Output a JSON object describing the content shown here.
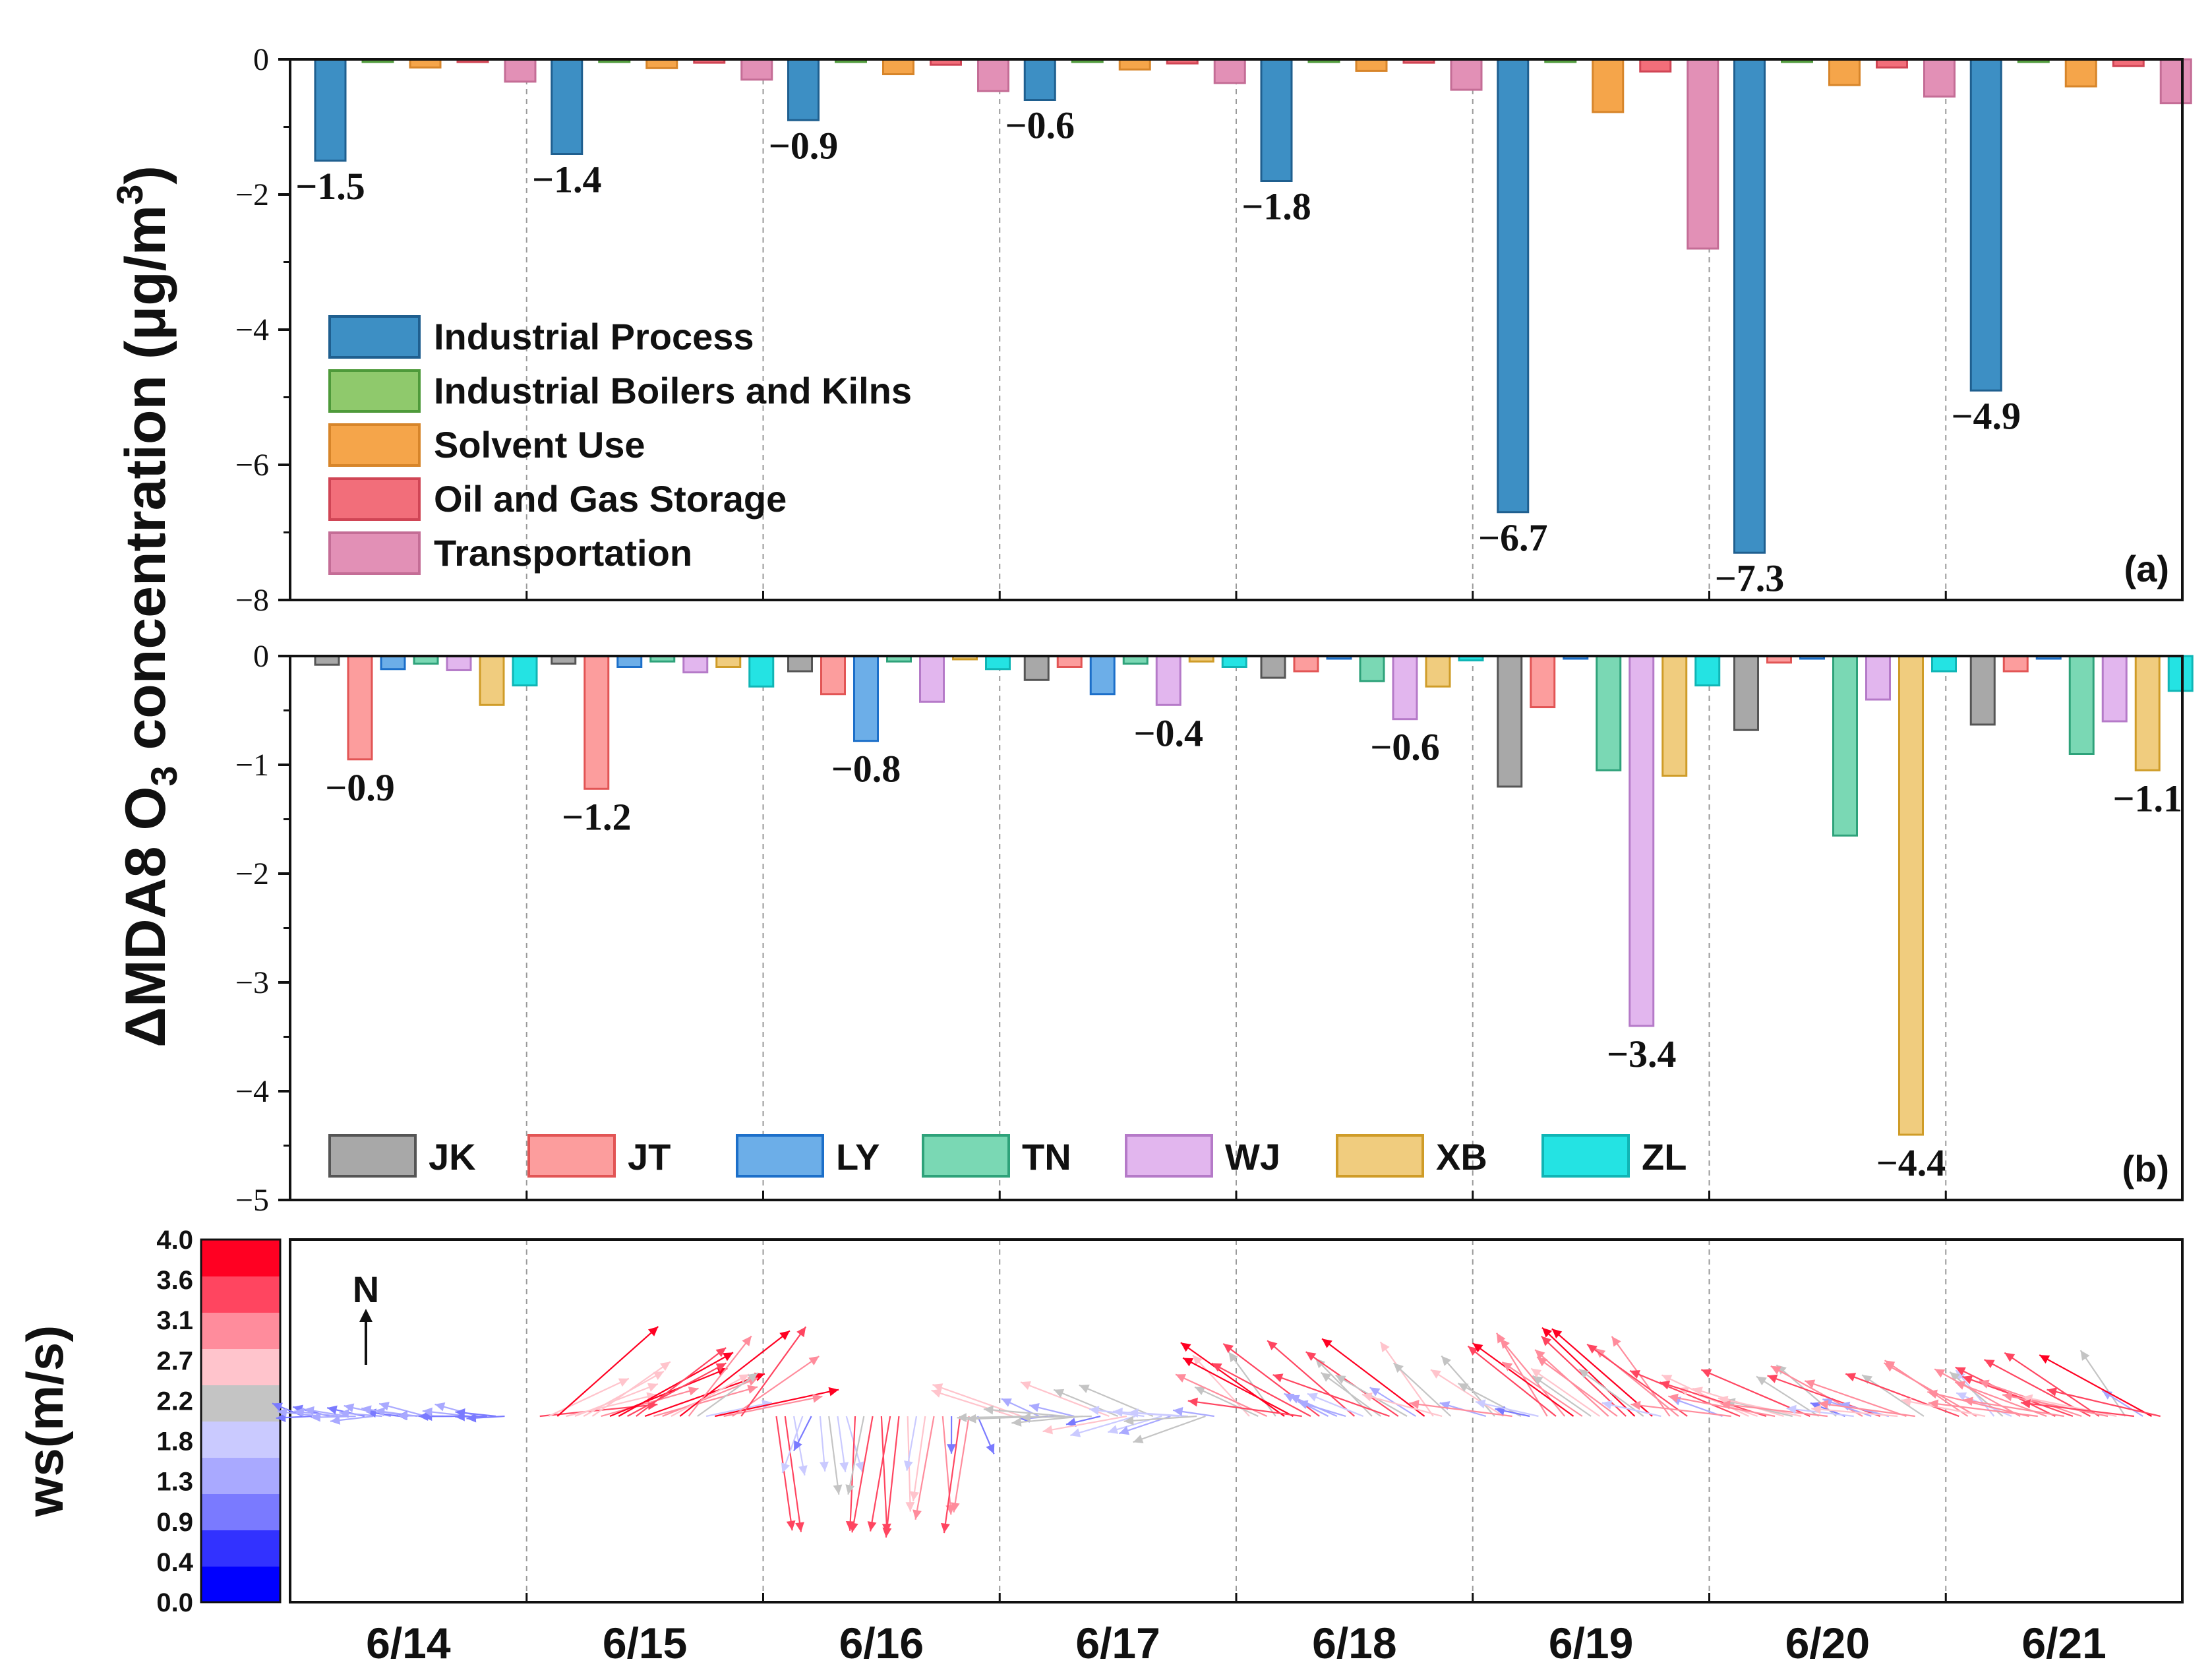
{
  "chart_data": [
    {
      "type": "bar",
      "panel": "(a)",
      "ylabel": "ΔMDA8 O3 concentration (μg/m3)",
      "ylim": [
        -8,
        0
      ],
      "yticks": [
        0,
        -2,
        -4,
        -6,
        -8
      ],
      "ytick_labels": [
        "0",
        "−2",
        "−4",
        "−6",
        "−8"
      ],
      "categories": [
        "6/14",
        "6/15",
        "6/16",
        "6/17",
        "6/18",
        "6/19",
        "6/20",
        "6/21"
      ],
      "series": [
        {
          "name": "Industrial Process",
          "color": "#3d8fc4",
          "edge": "#1f5f8f",
          "values": [
            -1.5,
            -1.4,
            -0.9,
            -0.6,
            -1.8,
            -6.7,
            -7.3,
            -4.9
          ]
        },
        {
          "name": "Industrial Boilers and Kilns",
          "color": "#8fc96c",
          "edge": "#4e9a3a",
          "values": [
            -0.02,
            -0.02,
            -0.02,
            -0.02,
            -0.02,
            -0.03,
            -0.02,
            -0.02
          ]
        },
        {
          "name": "Solvent Use",
          "color": "#f5a54a",
          "edge": "#d7852a",
          "values": [
            -0.12,
            -0.13,
            -0.22,
            -0.15,
            -0.17,
            -0.78,
            -0.38,
            -0.4
          ]
        },
        {
          "name": "Oil and Gas Storage",
          "color": "#f26e7a",
          "edge": "#d04555",
          "values": [
            -0.04,
            -0.05,
            -0.08,
            -0.06,
            -0.05,
            -0.18,
            -0.12,
            -0.1
          ]
        },
        {
          "name": "Transportation",
          "color": "#e290b6",
          "edge": "#c46d96",
          "values": [
            -0.33,
            -0.3,
            -0.47,
            -0.35,
            -0.45,
            -2.8,
            -0.55,
            -0.65
          ]
        }
      ],
      "annotations": [
        "−1.5",
        "−1.4",
        "−0.9",
        "−0.6",
        "−1.8",
        "−6.7",
        "−7.3",
        "−4.9"
      ]
    },
    {
      "type": "bar",
      "panel": "(b)",
      "ylim": [
        -5,
        0
      ],
      "yticks": [
        0,
        -1,
        -2,
        -3,
        -4,
        -5
      ],
      "ytick_labels": [
        "0",
        "−1",
        "−2",
        "−3",
        "−4",
        "−5"
      ],
      "categories": [
        "6/14",
        "6/15",
        "6/16",
        "6/17",
        "6/18",
        "6/19",
        "6/20",
        "6/21"
      ],
      "series": [
        {
          "name": "JK",
          "color": "#a8a8a8",
          "edge": "#555555",
          "values": [
            -0.08,
            -0.07,
            -0.14,
            -0.22,
            -0.2,
            -1.2,
            -0.68,
            -0.63
          ]
        },
        {
          "name": "JT",
          "color": "#fc9d9d",
          "edge": "#e25555",
          "values": [
            -0.95,
            -1.22,
            -0.35,
            -0.1,
            -0.14,
            -0.47,
            -0.06,
            -0.14
          ]
        },
        {
          "name": "LY",
          "color": "#6caee8",
          "edge": "#1c6fc9",
          "values": [
            -0.12,
            -0.1,
            -0.78,
            -0.35,
            -0.02,
            -0.02,
            -0.02,
            -0.02
          ]
        },
        {
          "name": "TN",
          "color": "#7ad8b4",
          "edge": "#2ea27a",
          "values": [
            -0.07,
            -0.05,
            -0.05,
            -0.07,
            -0.23,
            -1.05,
            -1.65,
            -0.9
          ]
        },
        {
          "name": "WJ",
          "color": "#e2b6ee",
          "edge": "#b57ac8",
          "values": [
            -0.13,
            -0.15,
            -0.42,
            -0.45,
            -0.58,
            -3.4,
            -0.4,
            -0.6
          ]
        },
        {
          "name": "XB",
          "color": "#f0cc7e",
          "edge": "#cf9c28",
          "values": [
            -0.45,
            -0.1,
            -0.03,
            -0.05,
            -0.28,
            -1.1,
            -4.4,
            -1.05
          ]
        },
        {
          "name": "ZL",
          "color": "#24e3e3",
          "edge": "#10b5b5",
          "values": [
            -0.27,
            -0.28,
            -0.12,
            -0.1,
            -0.04,
            -0.27,
            -0.14,
            -0.32
          ]
        }
      ],
      "annotations": [
        {
          "day": 0,
          "text": "−0.9"
        },
        {
          "day": 1,
          "text": "−1.2"
        },
        {
          "day": 2,
          "text": "−0.8"
        },
        {
          "day": 3,
          "text": "−0.4"
        },
        {
          "day": 4,
          "text": "−0.6"
        },
        {
          "day": 5,
          "text": "−3.4"
        },
        {
          "day": 6,
          "text": "−4.4"
        },
        {
          "day": 7,
          "text": "−1.1"
        }
      ]
    },
    {
      "type": "quiver",
      "panel": "wind",
      "ylabel": "ws(m/s)",
      "north_label": "N",
      "colorbar": {
        "ticks": [
          "0.0",
          "0.4",
          "0.9",
          "1.3",
          "1.8",
          "2.2",
          "2.7",
          "3.1",
          "3.6",
          "4.0"
        ],
        "colors": [
          "#0000ff",
          "#3232ff",
          "#7a7aff",
          "#a9a9ff",
          "#cacaff",
          "#c4c4c4",
          "#ffc4cc",
          "#ff8c9c",
          "#ff4560",
          "#ff0022"
        ]
      },
      "vectors_per_day": 24,
      "speed_max": 4.0,
      "wind": [
        [
          -0.5,
          0.6,
          4.2,
          -1.4
        ],
        [
          -0.6,
          0.8,
          4.0,
          -1.5
        ],
        [
          -0.4,
          0.3,
          4.3,
          -1.0
        ],
        [
          -0.6,
          0.9,
          3.8,
          -1.7
        ],
        [
          -0.5,
          0.4,
          4.1,
          -1.3
        ],
        [
          -0.3,
          0.7,
          4.4,
          -1.1
        ],
        [
          -0.7,
          1.1,
          3.9,
          -2.0
        ],
        [
          -0.4,
          0.2,
          4.2,
          -1.3
        ],
        [
          -0.2,
          0.9,
          4.6,
          -2.2
        ],
        [
          -0.3,
          0.2,
          4.3,
          -2.6
        ],
        [
          -0.4,
          0.6,
          4.4,
          -2.5
        ],
        [
          -0.5,
          0.8,
          4.0,
          -1.8
        ],
        [
          -0.2,
          0.9,
          4.6,
          -2.4
        ],
        [
          -0.3,
          0.1,
          3.8,
          -2.1
        ],
        [
          -0.1,
          0.5,
          4.2,
          -1.5
        ],
        [
          -0.4,
          0.7,
          4.5,
          -1.9
        ],
        [
          -0.2,
          0.3,
          4.0,
          -1.9
        ],
        [
          -0.3,
          0.7,
          4.2,
          -2.3
        ],
        [
          -0.6,
          0.2,
          4.1,
          -1.8
        ],
        [
          -0.3,
          0.2,
          4.3,
          -1.9
        ],
        [
          -0.5,
          0.4,
          4.1,
          -2.0
        ],
        [
          -0.5,
          0.5,
          4.0,
          -1.6
        ],
        [
          -0.4,
          0.3,
          4.3,
          -2.3
        ],
        [
          -0.4,
          0.6,
          4.4,
          -1.2
        ]
      ]
    }
  ],
  "xtick_labels": [
    "6/14",
    "6/15",
    "6/16",
    "6/17",
    "6/18",
    "6/19",
    "6/20",
    "6/21"
  ]
}
